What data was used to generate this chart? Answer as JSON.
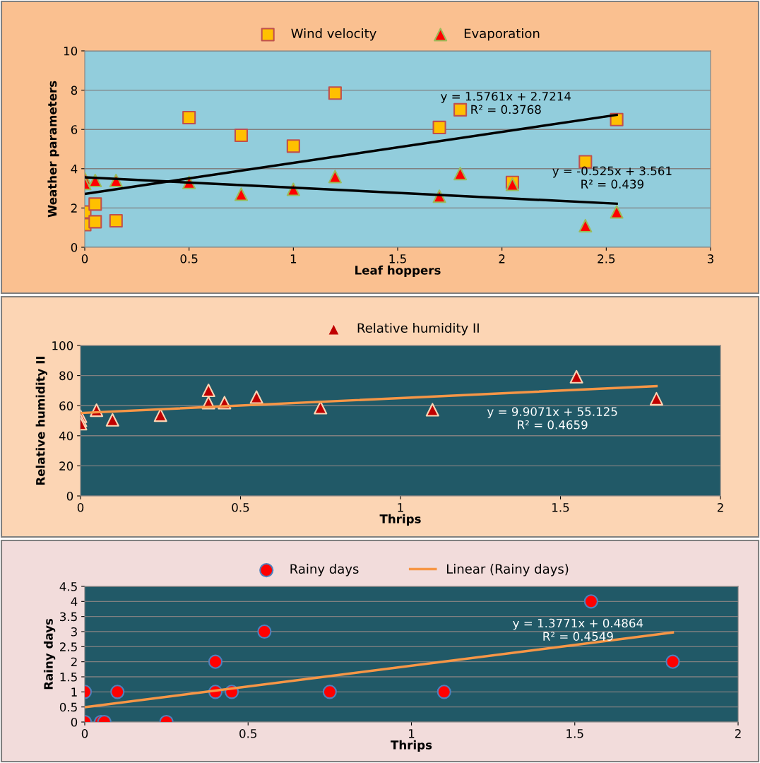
{
  "chart_data": [
    {
      "type": "scatter",
      "xlabel": "Leaf hoppers",
      "ylabel": "Weather parameters",
      "xlim": [
        0,
        3
      ],
      "xticks": [
        0,
        0.5,
        1,
        1.5,
        2,
        2.5,
        3
      ],
      "ylim": [
        0,
        10
      ],
      "yticks": [
        0,
        2,
        4,
        6,
        8,
        10
      ],
      "grid": "y",
      "legend": "top",
      "series": [
        {
          "name": "Wind velocity",
          "color": "#ffc000",
          "marker": "square",
          "x": [
            0,
            0,
            0.05,
            0.05,
            0.15,
            0.5,
            0.75,
            1.0,
            1.2,
            1.7,
            1.8,
            2.05,
            2.4,
            2.55
          ],
          "values": [
            1.8,
            1.15,
            2.2,
            1.3,
            1.35,
            6.6,
            5.7,
            5.15,
            7.85,
            6.1,
            7.0,
            3.3,
            4.35,
            6.5
          ]
        },
        {
          "name": "Evaporation",
          "color": "#ff0000",
          "marker": "triangle",
          "x": [
            0,
            0,
            0.05,
            0.15,
            0.5,
            0.75,
            1.0,
            1.2,
            1.7,
            1.8,
            2.05,
            2.4,
            2.55
          ],
          "values": [
            3.5,
            3.25,
            3.4,
            3.4,
            3.3,
            2.7,
            2.95,
            3.6,
            2.6,
            3.75,
            3.2,
            1.1,
            1.8
          ]
        },
        {
          "type": "line",
          "color": "#000000",
          "x": [
            0,
            2.55
          ],
          "values": [
            2.72,
            6.74
          ]
        },
        {
          "type": "line",
          "color": "#000000",
          "x": [
            0,
            2.55
          ],
          "values": [
            3.56,
            2.22
          ]
        }
      ],
      "annotations": [
        "y = 1.5761x + 2.7214\nR² = 0.3768",
        "y = -0.525x + 3.561\nR² = 0.439"
      ]
    },
    {
      "type": "scatter",
      "xlabel": "Thrips",
      "ylabel": "Relative humidity II",
      "xlim": [
        0,
        2
      ],
      "xticks": [
        0,
        0.5,
        1,
        1.5,
        2
      ],
      "ylim": [
        0,
        100
      ],
      "yticks": [
        0,
        20,
        40,
        60,
        80,
        100
      ],
      "grid": "y",
      "legend": "top",
      "series": [
        {
          "name": "Relative humidity II",
          "color": "#c00000",
          "marker": "triangle",
          "x": [
            0,
            0,
            0,
            0.05,
            0.1,
            0.25,
            0.4,
            0.4,
            0.45,
            0.55,
            0.75,
            1.1,
            1.55,
            1.8
          ],
          "values": [
            53,
            50.3,
            48,
            57,
            50.6,
            53.7,
            70.2,
            62,
            62,
            65.7,
            58.7,
            57.3,
            79.2,
            64.6
          ]
        },
        {
          "type": "line",
          "color": "#f79646",
          "x": [
            0,
            1.8
          ],
          "values": [
            55.1,
            73.0
          ]
        }
      ],
      "annotations": [
        "y = 9.9071x + 55.125\nR² = 0.4659"
      ]
    },
    {
      "type": "scatter",
      "xlabel": "Thrips",
      "ylabel": "Rainy days",
      "xlim": [
        0,
        2
      ],
      "xticks": [
        0,
        0.5,
        1,
        1.5,
        2
      ],
      "ylim": [
        0,
        4.5
      ],
      "yticks": [
        0,
        0.5,
        1,
        1.5,
        2,
        2.5,
        3,
        3.5,
        4,
        4.5
      ],
      "grid": "y",
      "legend": "top",
      "series": [
        {
          "name": "Rainy days",
          "color": "#ff0000",
          "marker": "circle",
          "x": [
            0,
            0,
            0.05,
            0.06,
            0.1,
            0.25,
            0.4,
            0.4,
            0.45,
            0.55,
            0.75,
            1.1,
            1.55,
            1.8
          ],
          "values": [
            1,
            0,
            0,
            0,
            1,
            0,
            2,
            1,
            1,
            3,
            1,
            1,
            4,
            2
          ]
        },
        {
          "name": "Linear (Rainy days)",
          "type": "line",
          "color": "#f79646",
          "x": [
            0,
            1.8
          ],
          "values": [
            0.49,
            2.97
          ]
        }
      ],
      "annotations": [
        "y = 1.3771x + 0.4864\nR² = 0.4549"
      ]
    }
  ]
}
